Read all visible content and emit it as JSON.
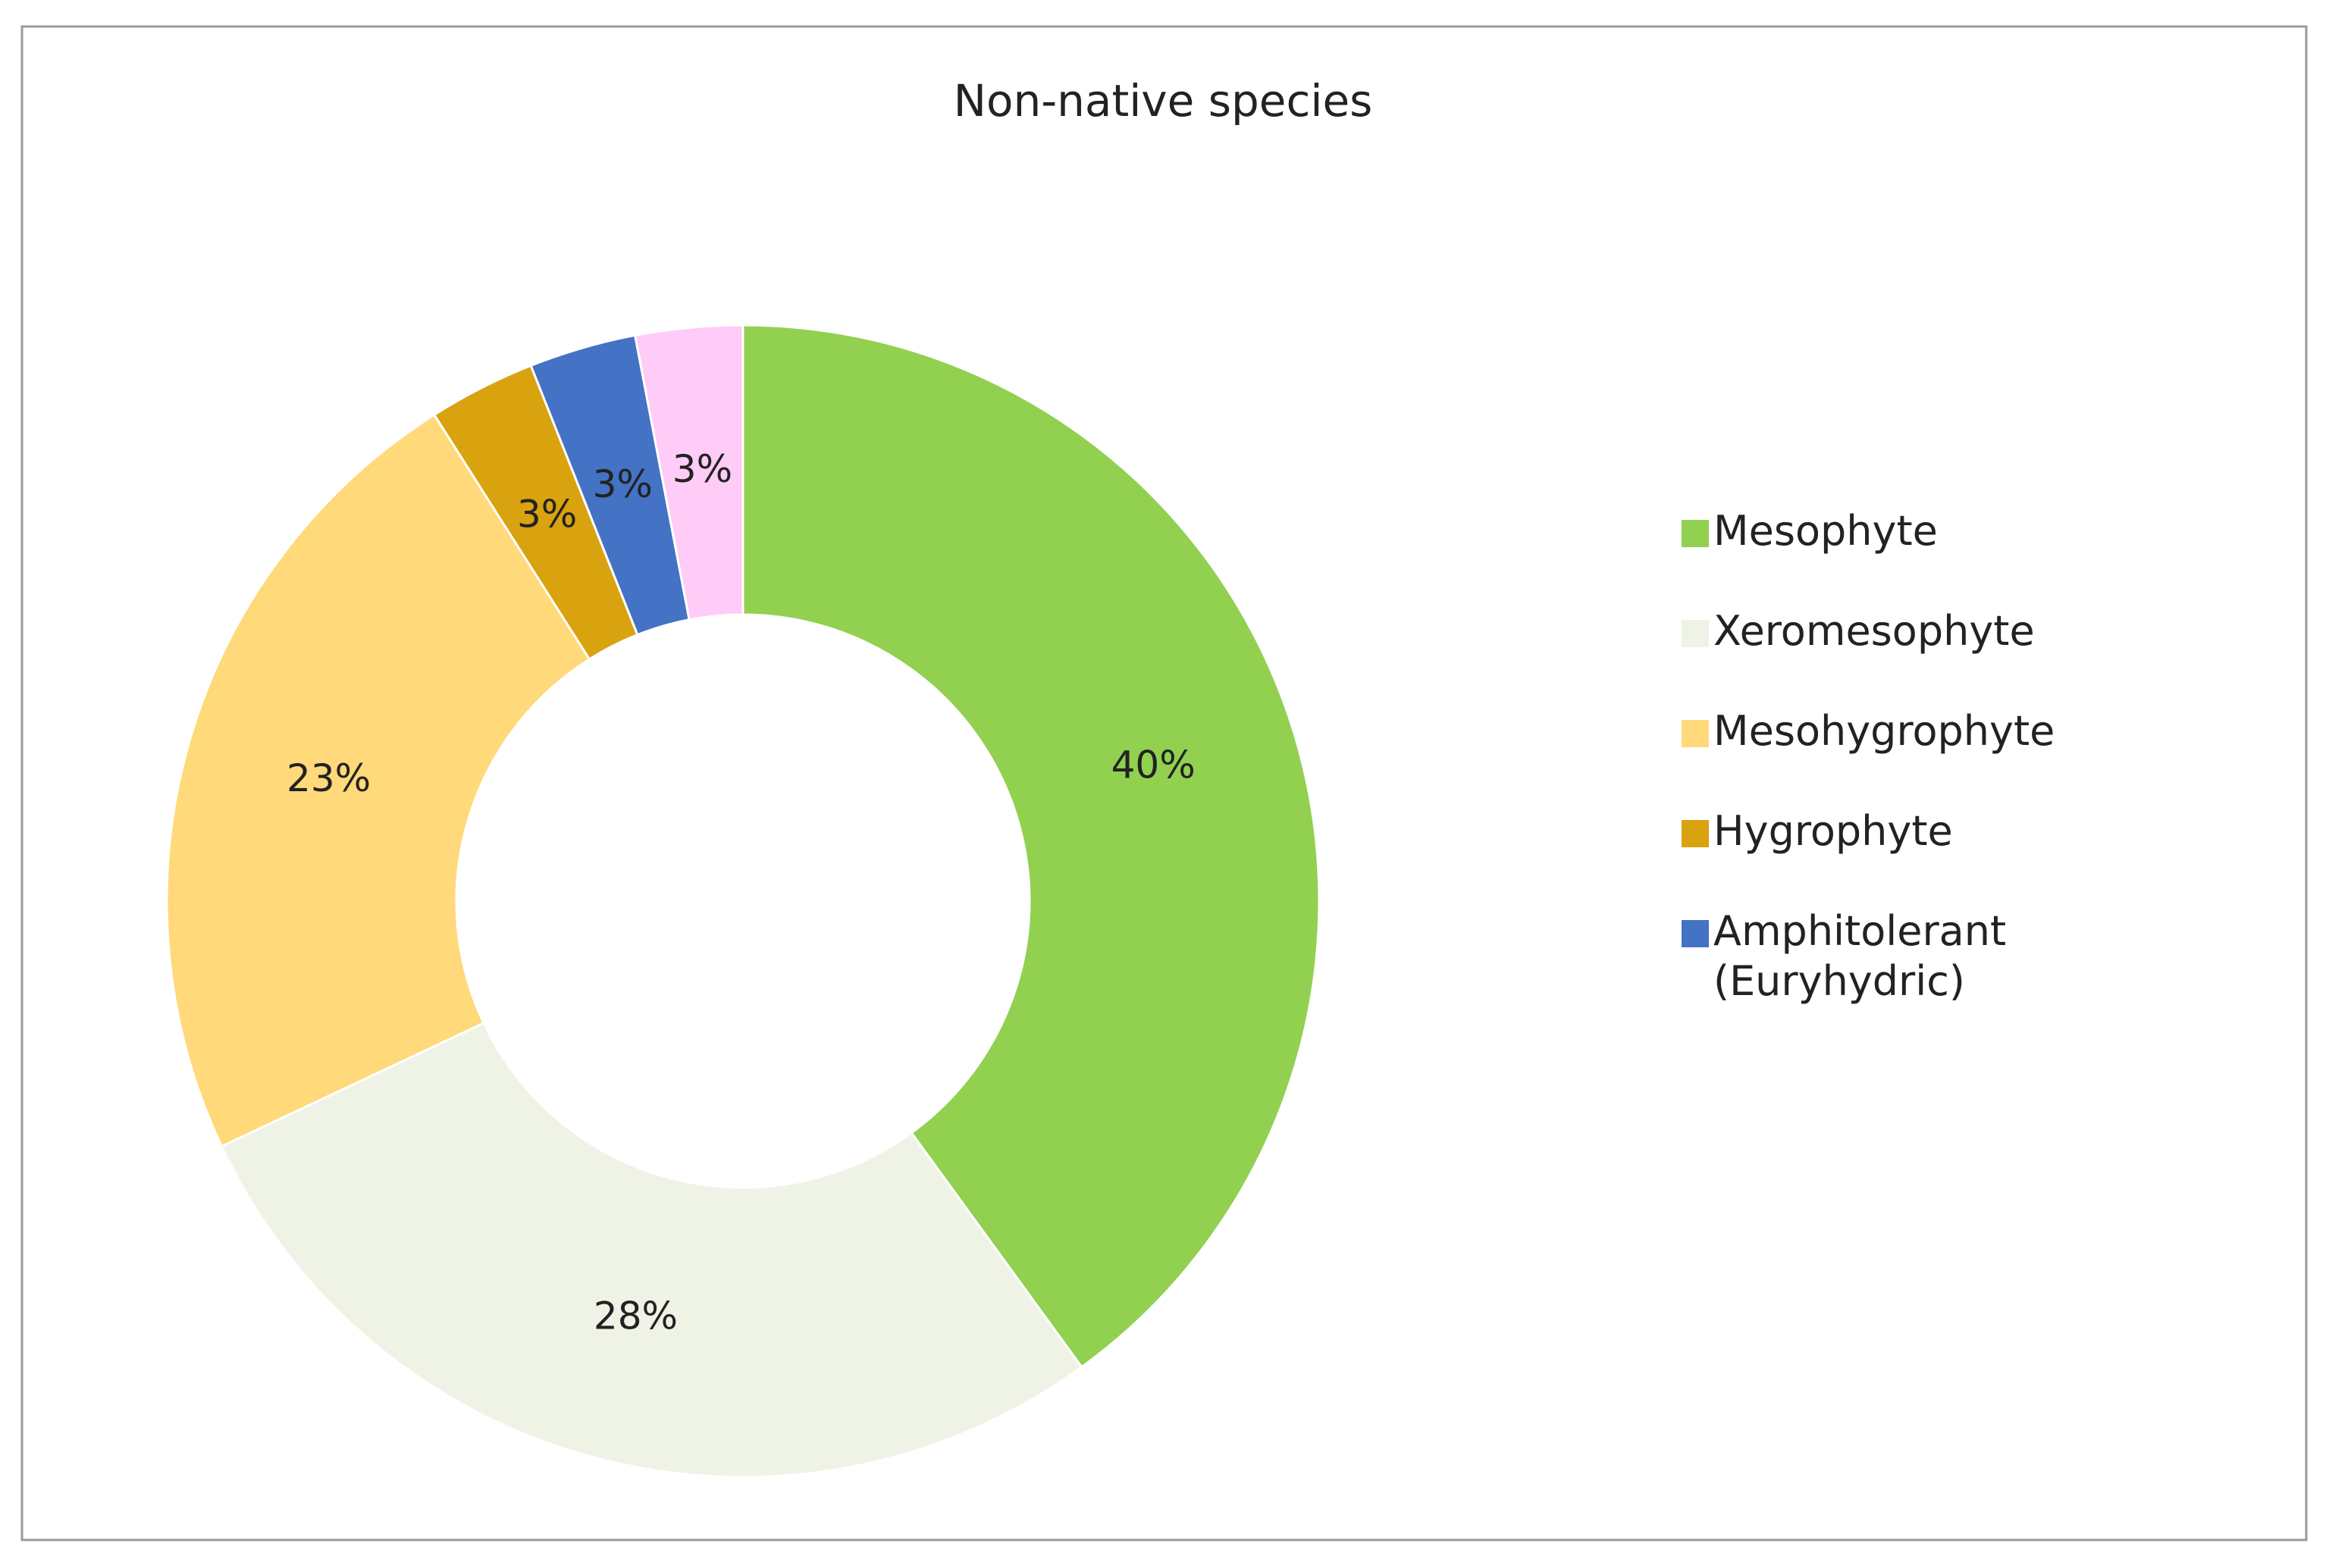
{
  "chart_data": {
    "type": "donut",
    "title": "Non-native species",
    "categories": [
      "Mesophyte",
      "Xeromesophyte",
      "Mesohygrophyte",
      "Hygrophyte",
      "Amphitolerant (Euryhydric)",
      null
    ],
    "values": [
      40,
      28,
      23,
      3,
      3,
      3
    ],
    "value_labels": [
      "40%",
      "28%",
      "23%",
      "3%",
      "3%",
      "3%"
    ],
    "colors": [
      "#92d050",
      "#eef3e6",
      "#ffd97a",
      "#d9a20f",
      "#4472c4",
      "#ffccf7"
    ],
    "legend": "right"
  }
}
